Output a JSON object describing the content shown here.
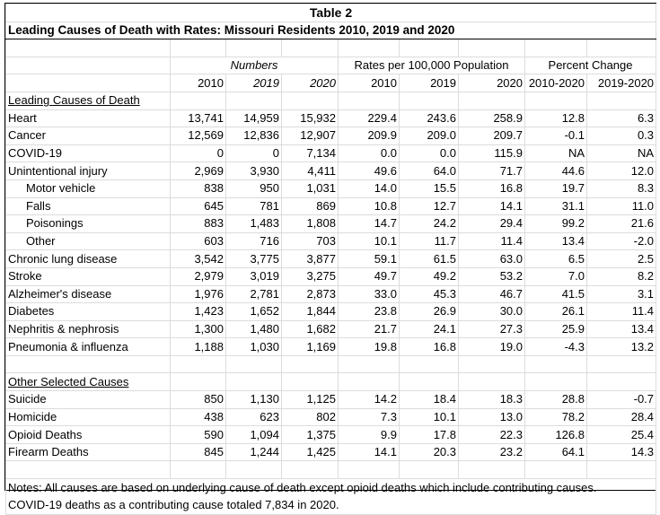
{
  "title": "Table 2",
  "subtitle": "Leading Causes of Death with Rates: Missouri Residents 2010, 2019 and 2020",
  "groups": {
    "numbers": "Numbers",
    "rates": "Rates per 100,000 Population",
    "pct": "Percent Change"
  },
  "columns": [
    "2010",
    "2019",
    "2020",
    "2010",
    "2019",
    "2020",
    "2010-2020",
    "2019-2020"
  ],
  "section_leading": "Leading Causes of Death",
  "leading_rows": [
    {
      "label": "Heart",
      "indent": false,
      "values": [
        "13,741",
        "14,959",
        "15,932",
        "229.4",
        "243.6",
        "258.9",
        "12.8",
        "6.3"
      ]
    },
    {
      "label": "Cancer",
      "indent": false,
      "values": [
        "12,569",
        "12,836",
        "12,907",
        "209.9",
        "209.0",
        "209.7",
        "-0.1",
        "0.3"
      ]
    },
    {
      "label": "COVID-19",
      "indent": false,
      "values": [
        "0",
        "0",
        "7,134",
        "0.0",
        "0.0",
        "115.9",
        "NA",
        "NA"
      ]
    },
    {
      "label": "Unintentional injury",
      "indent": false,
      "values": [
        "2,969",
        "3,930",
        "4,411",
        "49.6",
        "64.0",
        "71.7",
        "44.6",
        "12.0"
      ]
    },
    {
      "label": "Motor vehicle",
      "indent": true,
      "values": [
        "838",
        "950",
        "1,031",
        "14.0",
        "15.5",
        "16.8",
        "19.7",
        "8.3"
      ]
    },
    {
      "label": "Falls",
      "indent": true,
      "values": [
        "645",
        "781",
        "869",
        "10.8",
        "12.7",
        "14.1",
        "31.1",
        "11.0"
      ]
    },
    {
      "label": "Poisonings",
      "indent": true,
      "values": [
        "883",
        "1,483",
        "1,808",
        "14.7",
        "24.2",
        "29.4",
        "99.2",
        "21.6"
      ]
    },
    {
      "label": "Other",
      "indent": true,
      "values": [
        "603",
        "716",
        "703",
        "10.1",
        "11.7",
        "11.4",
        "13.4",
        "-2.0"
      ]
    },
    {
      "label": "Chronic lung disease",
      "indent": false,
      "values": [
        "3,542",
        "3,775",
        "3,877",
        "59.1",
        "61.5",
        "63.0",
        "6.5",
        "2.5"
      ]
    },
    {
      "label": "Stroke",
      "indent": false,
      "values": [
        "2,979",
        "3,019",
        "3,275",
        "49.7",
        "49.2",
        "53.2",
        "7.0",
        "8.2"
      ]
    },
    {
      "label": "Alzheimer's disease",
      "indent": false,
      "values": [
        "1,976",
        "2,781",
        "2,873",
        "33.0",
        "45.3",
        "46.7",
        "41.5",
        "3.1"
      ]
    },
    {
      "label": "Diabetes",
      "indent": false,
      "values": [
        "1,423",
        "1,652",
        "1,844",
        "23.8",
        "26.9",
        "30.0",
        "26.1",
        "11.4"
      ]
    },
    {
      "label": "Nephritis & nephrosis",
      "indent": false,
      "values": [
        "1,300",
        "1,480",
        "1,682",
        "21.7",
        "24.1",
        "27.3",
        "25.9",
        "13.4"
      ]
    },
    {
      "label": "Pneumonia & influenza",
      "indent": false,
      "values": [
        "1,188",
        "1,030",
        "1,169",
        "19.8",
        "16.8",
        "19.0",
        "-4.3",
        "13.2"
      ]
    }
  ],
  "section_other": "Other Selected Causes",
  "other_rows": [
    {
      "label": "Suicide",
      "indent": false,
      "values": [
        "850",
        "1,130",
        "1,125",
        "14.2",
        "18.4",
        "18.3",
        "28.8",
        "-0.7"
      ]
    },
    {
      "label": "Homicide",
      "indent": false,
      "values": [
        "438",
        "623",
        "802",
        "7.3",
        "10.1",
        "13.0",
        "78.2",
        "28.4"
      ]
    },
    {
      "label": "Opioid Deaths",
      "indent": false,
      "values": [
        "590",
        "1,094",
        "1,375",
        "9.9",
        "17.8",
        "22.3",
        "126.8",
        "25.4"
      ]
    },
    {
      "label": "Firearm Deaths",
      "indent": false,
      "values": [
        "845",
        "1,244",
        "1,425",
        "14.1",
        "20.3",
        "23.2",
        "64.1",
        "14.3"
      ]
    }
  ],
  "notes": [
    "Notes:  All causes are based on underlying cause of death except opioid deaths which include contributing causes.",
    "COVID-19 deaths as a contributing cause totaled 7,834 in 2020."
  ]
}
